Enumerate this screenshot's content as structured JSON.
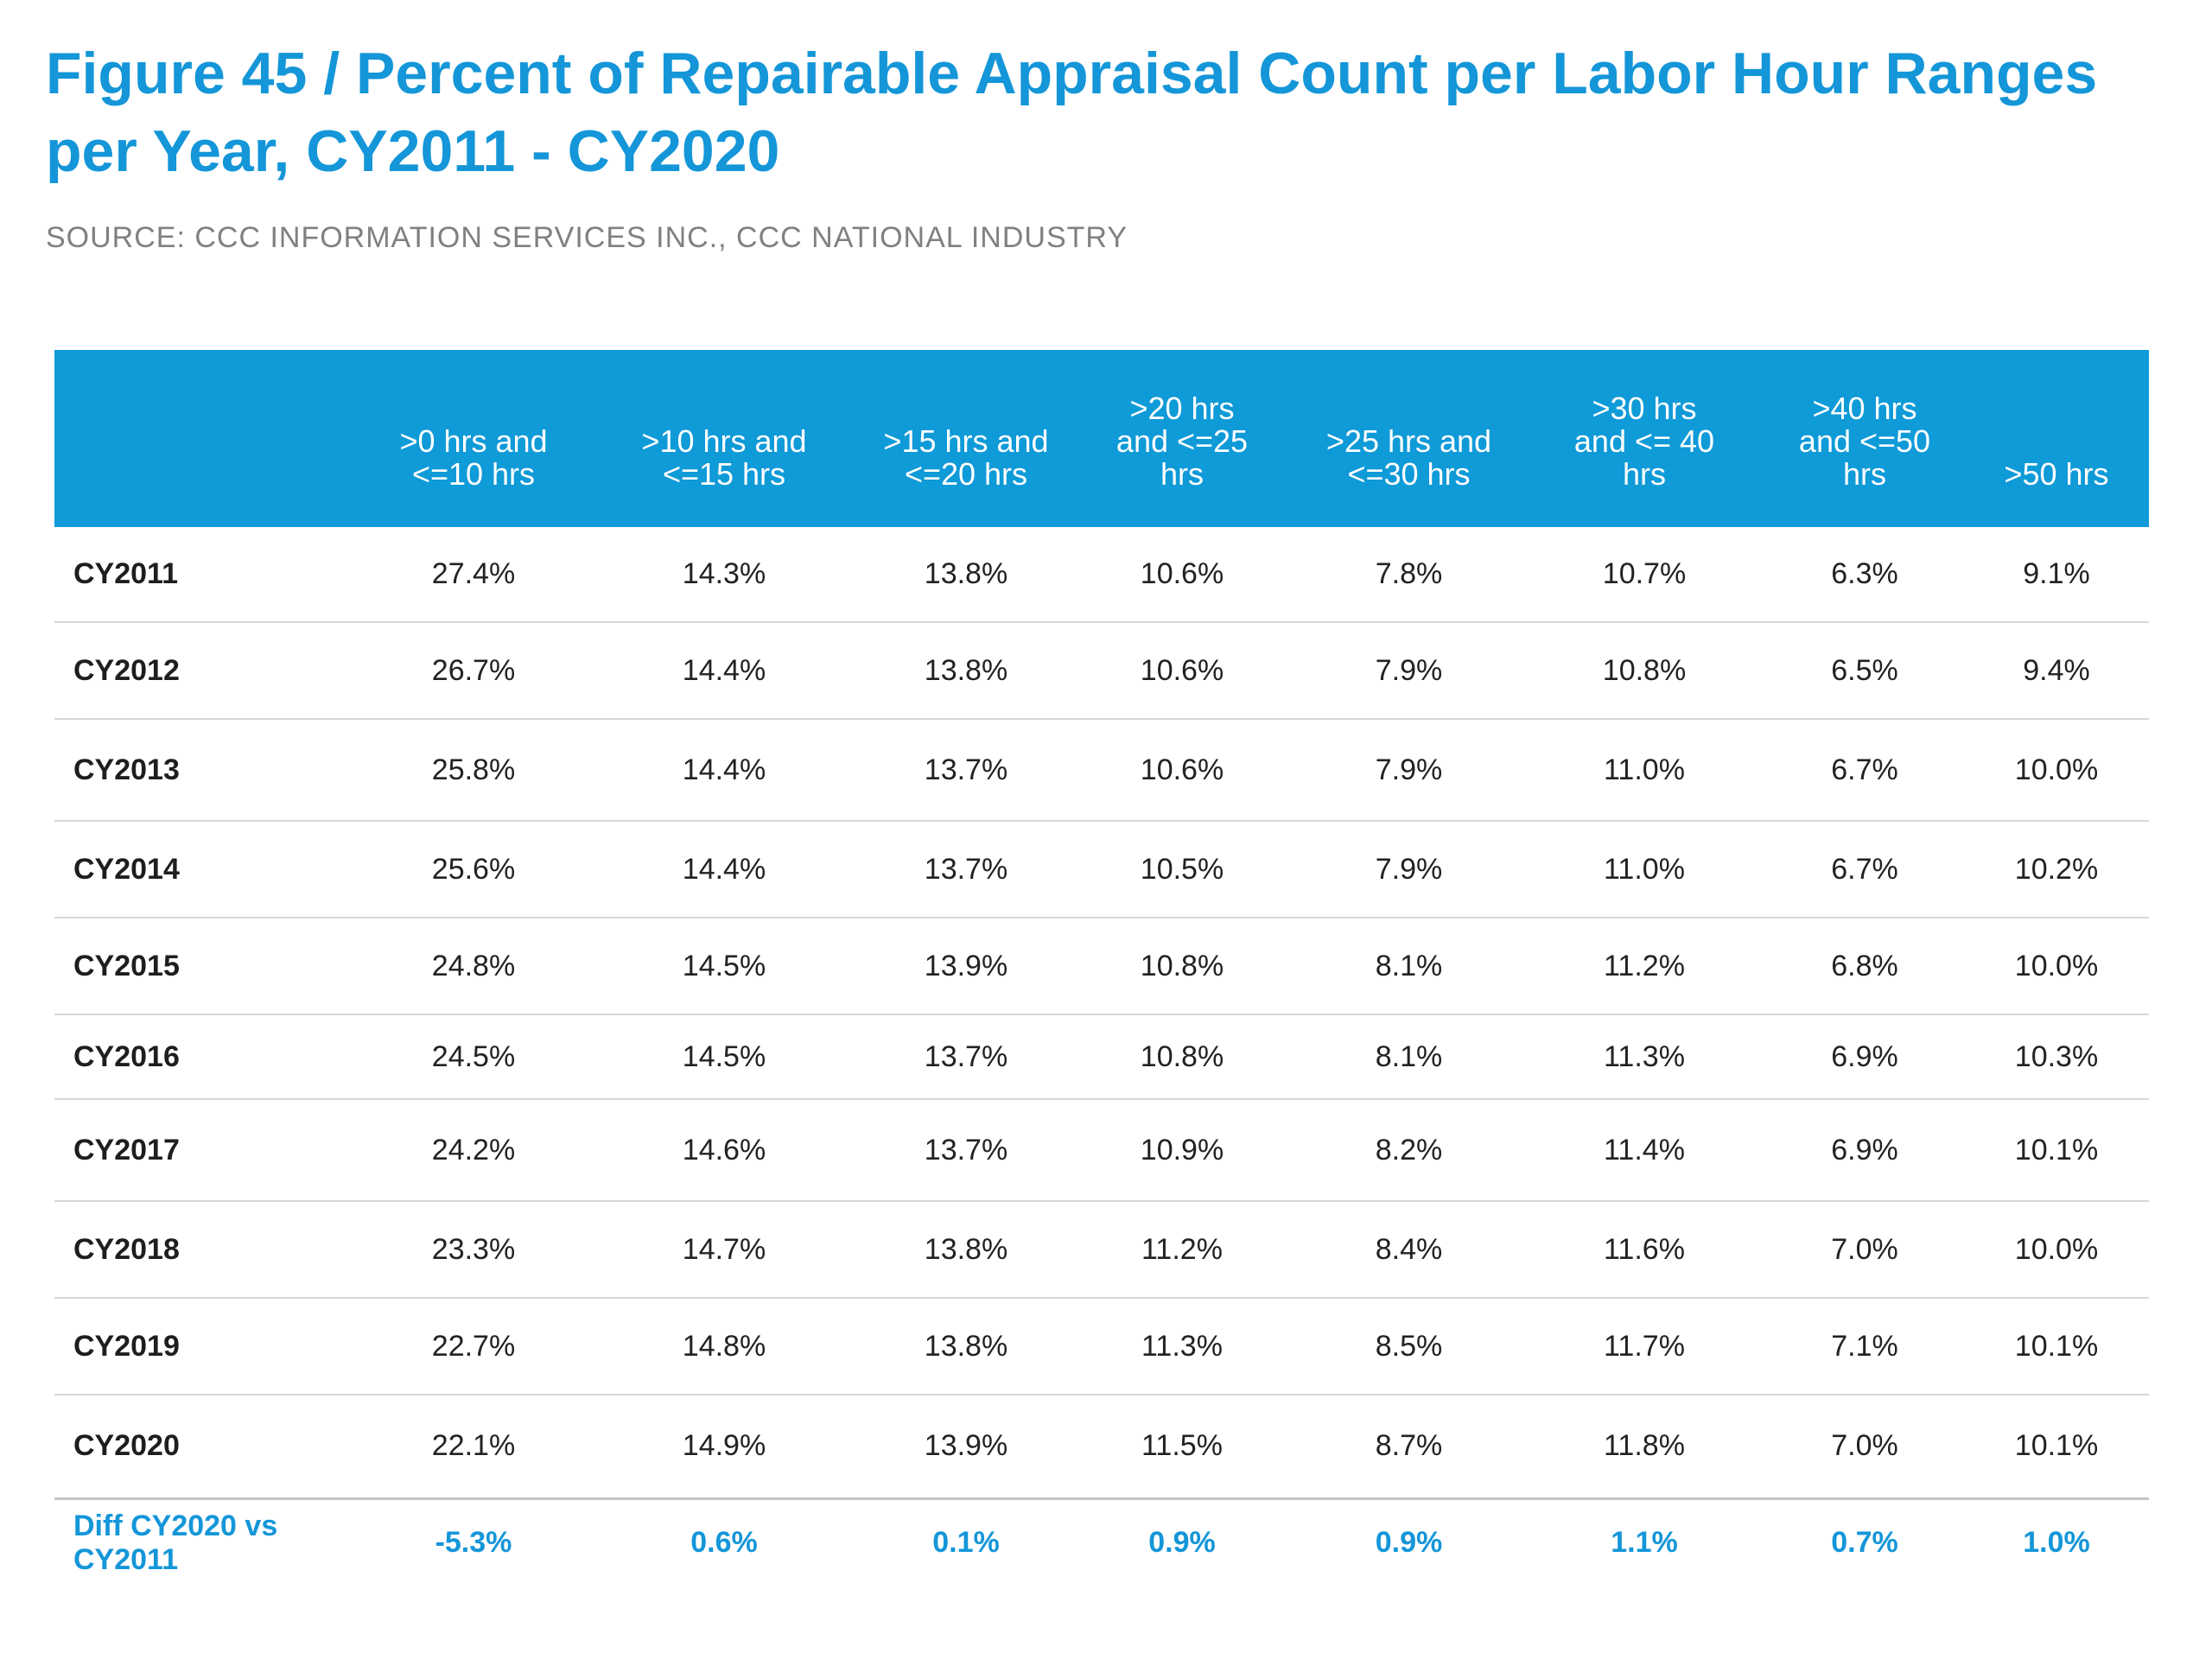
{
  "title": "Figure 45 / Percent of Repairable Appraisal Count per Labor Hour Ranges per Year, CY2011 - CY2020",
  "source": "SOURCE: CCC INFORMATION SERVICES INC., CCC NATIONAL INDUSTRY",
  "colors": {
    "accent": "#1496d8",
    "header_bg": "#0f9ad8",
    "header_text": "#ffffff",
    "row_divider": "#d6d6d6"
  },
  "chart_data": {
    "type": "table",
    "title": "Figure 45 / Percent of Repairable Appraisal Count per Labor Hour Ranges per Year, CY2011 - CY2020",
    "columns": [
      ">0 hrs and\n<=10 hrs",
      ">10 hrs and\n<=15 hrs",
      ">15 hrs and\n<=20 hrs",
      ">20 hrs\nand <=25\nhrs",
      ">25 hrs and\n<=30 hrs",
      ">30 hrs\nand <= 40\nhrs",
      ">40 hrs\nand <=50\nhrs",
      ">50 hrs"
    ],
    "rows": [
      {
        "label": "CY2011",
        "values": [
          "27.4%",
          "14.3%",
          "13.8%",
          "10.6%",
          "7.8%",
          "10.7%",
          "6.3%",
          "9.1%"
        ]
      },
      {
        "label": "CY2012",
        "values": [
          "26.7%",
          "14.4%",
          "13.8%",
          "10.6%",
          "7.9%",
          "10.8%",
          "6.5%",
          "9.4%"
        ]
      },
      {
        "label": "CY2013",
        "values": [
          "25.8%",
          "14.4%",
          "13.7%",
          "10.6%",
          "7.9%",
          "11.0%",
          "6.7%",
          "10.0%"
        ]
      },
      {
        "label": "CY2014",
        "values": [
          "25.6%",
          "14.4%",
          "13.7%",
          "10.5%",
          "7.9%",
          "11.0%",
          "6.7%",
          "10.2%"
        ]
      },
      {
        "label": "CY2015",
        "values": [
          "24.8%",
          "14.5%",
          "13.9%",
          "10.8%",
          "8.1%",
          "11.2%",
          "6.8%",
          "10.0%"
        ]
      },
      {
        "label": "CY2016",
        "values": [
          "24.5%",
          "14.5%",
          "13.7%",
          "10.8%",
          "8.1%",
          "11.3%",
          "6.9%",
          "10.3%"
        ]
      },
      {
        "label": "CY2017",
        "values": [
          "24.2%",
          "14.6%",
          "13.7%",
          "10.9%",
          "8.2%",
          "11.4%",
          "6.9%",
          "10.1%"
        ]
      },
      {
        "label": "CY2018",
        "values": [
          "23.3%",
          "14.7%",
          "13.8%",
          "11.2%",
          "8.4%",
          "11.6%",
          "7.0%",
          "10.0%"
        ]
      },
      {
        "label": "CY2019",
        "values": [
          "22.7%",
          "14.8%",
          "13.8%",
          "11.3%",
          "8.5%",
          "11.7%",
          "7.1%",
          "10.1%"
        ]
      },
      {
        "label": "CY2020",
        "values": [
          "22.1%",
          "14.9%",
          "13.9%",
          "11.5%",
          "8.7%",
          "11.8%",
          "7.0%",
          "10.1%"
        ]
      }
    ],
    "summary_row": {
      "label": "Diff CY2020 vs CY2011",
      "values": [
        "-5.3%",
        "0.6%",
        "0.1%",
        "0.9%",
        "0.9%",
        "1.1%",
        "0.7%",
        "1.0%"
      ]
    }
  }
}
